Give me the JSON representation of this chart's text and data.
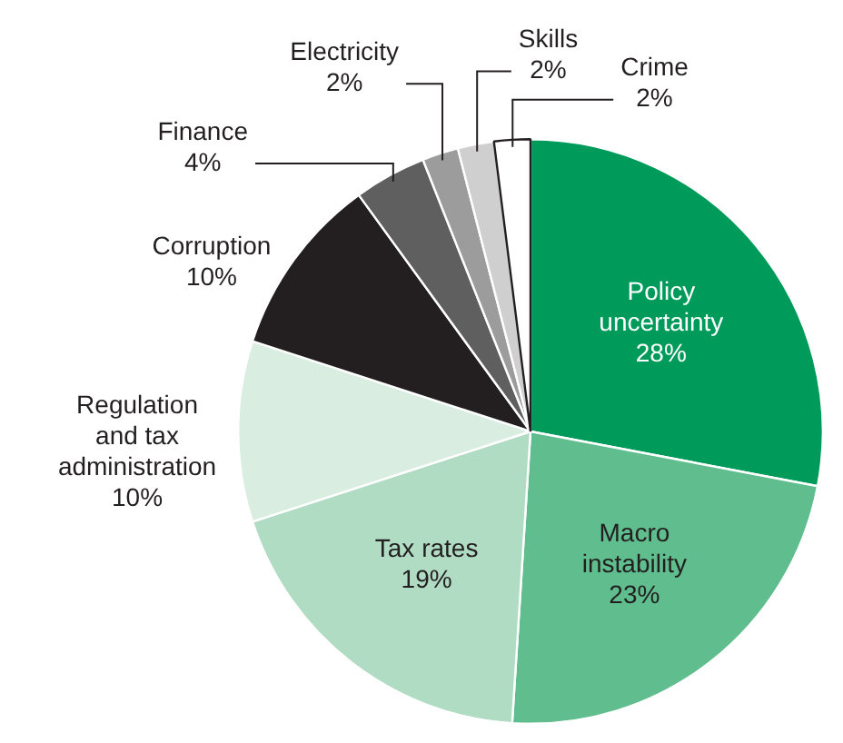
{
  "chart_data": {
    "type": "pie",
    "categories": [
      "Policy uncertainty",
      "Macro instability",
      "Tax rates",
      "Regulation and tax administration",
      "Corruption",
      "Finance",
      "Electricity",
      "Skills",
      "Crime"
    ],
    "values": [
      28,
      23,
      19,
      10,
      10,
      4,
      2,
      2,
      2
    ],
    "colors": [
      "#009a5a",
      "#5fbd8e",
      "#b0dcc3",
      "#d9ede1",
      "#231f20",
      "#5f5f5f",
      "#9c9c9c",
      "#cfcfcf",
      "#ffffff"
    ],
    "value_labels": [
      "28%",
      "23%",
      "19%",
      "10%",
      "10%",
      "4%",
      "2%",
      "2%",
      "2%"
    ],
    "legend": false
  }
}
